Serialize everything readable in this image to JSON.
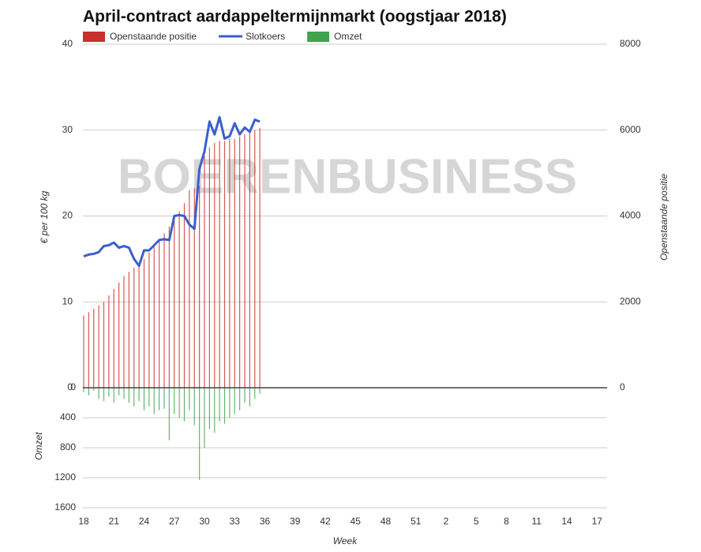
{
  "chart_data": {
    "type": "combo",
    "title": "April-contract aardappeltermijnmarkt (oogstjaar 2018)",
    "watermark": "BOERENBUSINESS",
    "xlabel": "Week",
    "ylabel": "€ per 100 kg",
    "y2label": "Openstaande positie",
    "y3label": "Omzet",
    "x": [
      0,
      0.5,
      1,
      1.5,
      2,
      2.5,
      3,
      3.5,
      4,
      4.5,
      5,
      5.5,
      6,
      6.5,
      7,
      7.5,
      8,
      8.5,
      9,
      9.5,
      10,
      10.5,
      11,
      11.5,
      12,
      12.5,
      13,
      13.5,
      14,
      14.5,
      15,
      15.5,
      16,
      16.5,
      17,
      17.5
    ],
    "xlim": [
      0,
      52
    ],
    "xticks": [
      {
        "value": 0,
        "label": "18"
      },
      {
        "value": 3,
        "label": "21"
      },
      {
        "value": 6,
        "label": "24"
      },
      {
        "value": 9,
        "label": "27"
      },
      {
        "value": 12,
        "label": "30"
      },
      {
        "value": 15,
        "label": "33"
      },
      {
        "value": 18,
        "label": "36"
      },
      {
        "value": 21,
        "label": "39"
      },
      {
        "value": 24,
        "label": "42"
      },
      {
        "value": 27,
        "label": "45"
      },
      {
        "value": 30,
        "label": "48"
      },
      {
        "value": 33,
        "label": "51"
      },
      {
        "value": 36,
        "label": "2"
      },
      {
        "value": 39,
        "label": "5"
      },
      {
        "value": 42,
        "label": "8"
      },
      {
        "value": 45,
        "label": "11"
      },
      {
        "value": 48,
        "label": "14"
      },
      {
        "value": 51,
        "label": "17"
      }
    ],
    "ylim": [
      0,
      40
    ],
    "yticks": [
      0,
      10,
      20,
      30,
      40
    ],
    "y2lim": [
      0,
      8000
    ],
    "y2ticks": [
      0,
      2000,
      4000,
      6000,
      8000
    ],
    "y3lim": [
      0,
      1600
    ],
    "y3ticks": [
      0,
      400,
      800,
      1200,
      1600
    ],
    "y3inverted": true,
    "grid": true,
    "series": [
      {
        "name": "Openstaande positie",
        "color": "#c9302c",
        "kind": "bar",
        "axis": "y2",
        "values": [
          1680,
          1760,
          1840,
          1920,
          2000,
          2150,
          2300,
          2450,
          2600,
          2700,
          2800,
          2900,
          3000,
          3150,
          3300,
          3450,
          3600,
          3750,
          3900,
          4100,
          4300,
          4600,
          4650,
          4700,
          5400,
          5600,
          5700,
          5750,
          5750,
          5800,
          5800,
          5850,
          5900,
          5950,
          6000,
          6050
        ]
      },
      {
        "name": "Slotkoers",
        "color": "#3a5fcd",
        "kind": "line",
        "axis": "y",
        "values": [
          15.3,
          15.5,
          15.6,
          15.8,
          16.5,
          16.6,
          16.9,
          16.3,
          16.5,
          16.3,
          15.0,
          14.2,
          16.0,
          16.0,
          16.6,
          17.2,
          17.3,
          17.2,
          20.0,
          20.1,
          20.0,
          19.0,
          18.5,
          25.5,
          27.5,
          31.0,
          29.5,
          31.5,
          29.0,
          29.3,
          30.8,
          29.5,
          30.3,
          29.8,
          31.2,
          31.0
        ]
      },
      {
        "name": "Omzet",
        "color": "#3fa34d",
        "kind": "bar",
        "axis": "y3",
        "values": [
          60,
          100,
          40,
          150,
          180,
          120,
          200,
          100,
          150,
          200,
          250,
          180,
          300,
          250,
          350,
          300,
          280,
          700,
          350,
          400,
          450,
          300,
          500,
          1230,
          800,
          550,
          600,
          450,
          480,
          400,
          350,
          300,
          200,
          250,
          150,
          80
        ]
      }
    ]
  }
}
